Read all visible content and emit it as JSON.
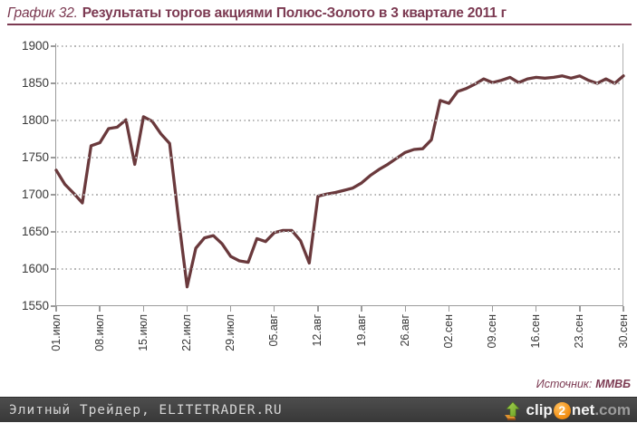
{
  "header": {
    "title_prefix": "График 32.",
    "title_main": "Результаты торгов акциями Полюс-Золото в 3 квартале 2011 г"
  },
  "source": {
    "label": "Источник:",
    "value": "ММВБ"
  },
  "footer": {
    "site": "Элитный Трейдер, ELITETRADER.RU",
    "logo": {
      "clip": "clip",
      "two": "2",
      "net": "net",
      "com": ".com",
      "arrow_icon": "upload-arrow-icon"
    }
  },
  "colors": {
    "accent_maroon": "#7C3A52",
    "line": "#6A393C",
    "axis_gray": "#9B9B9B",
    "grid_gray": "#B7B7B7",
    "tick_text": "#383838",
    "footer_bg": "#424242",
    "footer_text": "#D6D6D6",
    "logo_orange": "#F28C0F",
    "logo_green": "#7FB832",
    "logo_com_gray": "#9C9C9C"
  },
  "chart_data": {
    "type": "line",
    "title": "Результаты торгов акциями Полюс-Золото в 3 квартале 2011 г",
    "ylim": [
      1550,
      1900
    ],
    "y_ticks": [
      1550,
      1600,
      1650,
      1700,
      1750,
      1800,
      1850,
      1900
    ],
    "x_tick_labels": [
      "01.июл",
      "08.июл",
      "15.июл",
      "22.июл",
      "29.июл",
      "05.авг",
      "12.авг",
      "19.авг",
      "26.авг",
      "02.сен",
      "09.сен",
      "16.сен",
      "23.сен",
      "30.сен"
    ],
    "x_tick_indices": [
      0,
      5,
      10,
      15,
      20,
      25,
      30,
      35,
      40,
      45,
      50,
      55,
      60,
      65
    ],
    "grid": "horizontal-dotted",
    "legend": "none",
    "series": [
      {
        "name": "Полюс-Золото",
        "values": [
          1733,
          1714,
          1702,
          1689,
          1766,
          1770,
          1789,
          1791,
          1801,
          1741,
          1805,
          1799,
          1782,
          1769,
          1670,
          1576,
          1628,
          1642,
          1645,
          1634,
          1617,
          1611,
          1609,
          1641,
          1637,
          1649,
          1652,
          1652,
          1638,
          1608,
          1698,
          1701,
          1703,
          1706,
          1709,
          1716,
          1726,
          1734,
          1741,
          1749,
          1757,
          1761,
          1762,
          1774,
          1827,
          1823,
          1839,
          1843,
          1849,
          1856,
          1851,
          1854,
          1858,
          1851,
          1856,
          1858,
          1857,
          1858,
          1860,
          1857,
          1860,
          1854,
          1850,
          1856,
          1850,
          1860
        ]
      }
    ]
  }
}
